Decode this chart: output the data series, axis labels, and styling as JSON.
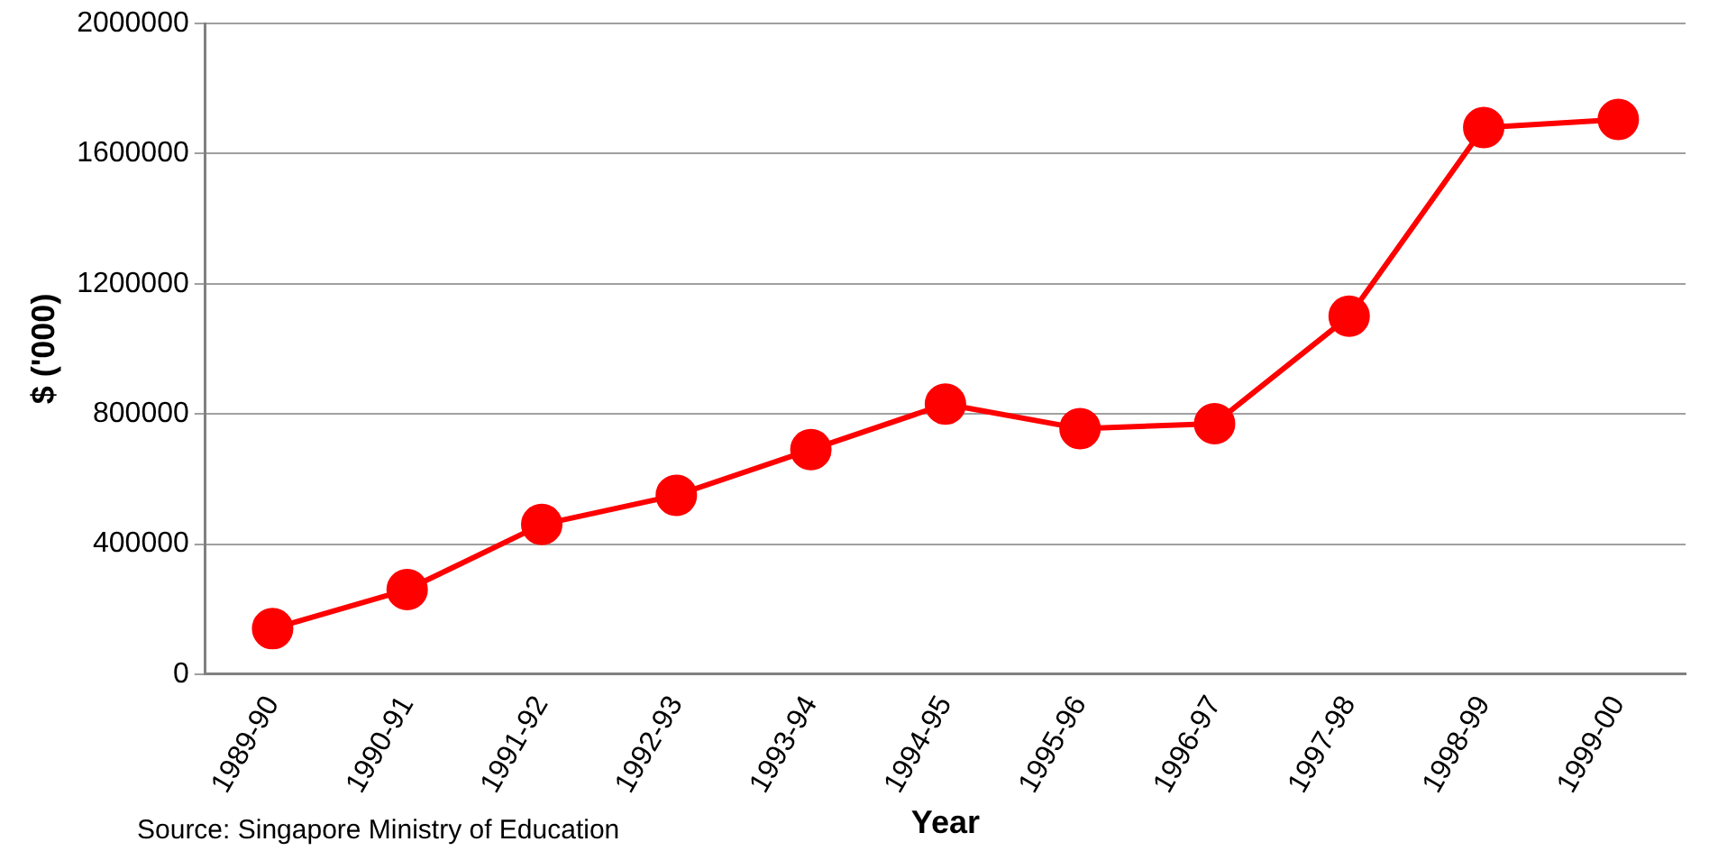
{
  "chart_data": {
    "type": "line",
    "xlabel": "Year",
    "ylabel": "$ ('000)",
    "categories": [
      "1989-90",
      "1990-91",
      "1991-92",
      "1992-93",
      "1993-94",
      "1994-95",
      "1995-96",
      "1996-97",
      "1997-98",
      "1998-99",
      "1999-00"
    ],
    "series": [
      {
        "color": "#ff0000",
        "values": [
          140000,
          260000,
          460000,
          550000,
          690000,
          830000,
          755000,
          770000,
          1100000,
          1680000,
          1705000
        ]
      }
    ],
    "ylim": [
      0,
      2000000
    ],
    "yticks": [
      0,
      400000,
      800000,
      1200000,
      1600000,
      2000000
    ],
    "grid": "y",
    "legend": false,
    "marker": "circle",
    "line_style": "solid",
    "annotations": [
      "Source: Singapore Ministry of Education"
    ]
  }
}
